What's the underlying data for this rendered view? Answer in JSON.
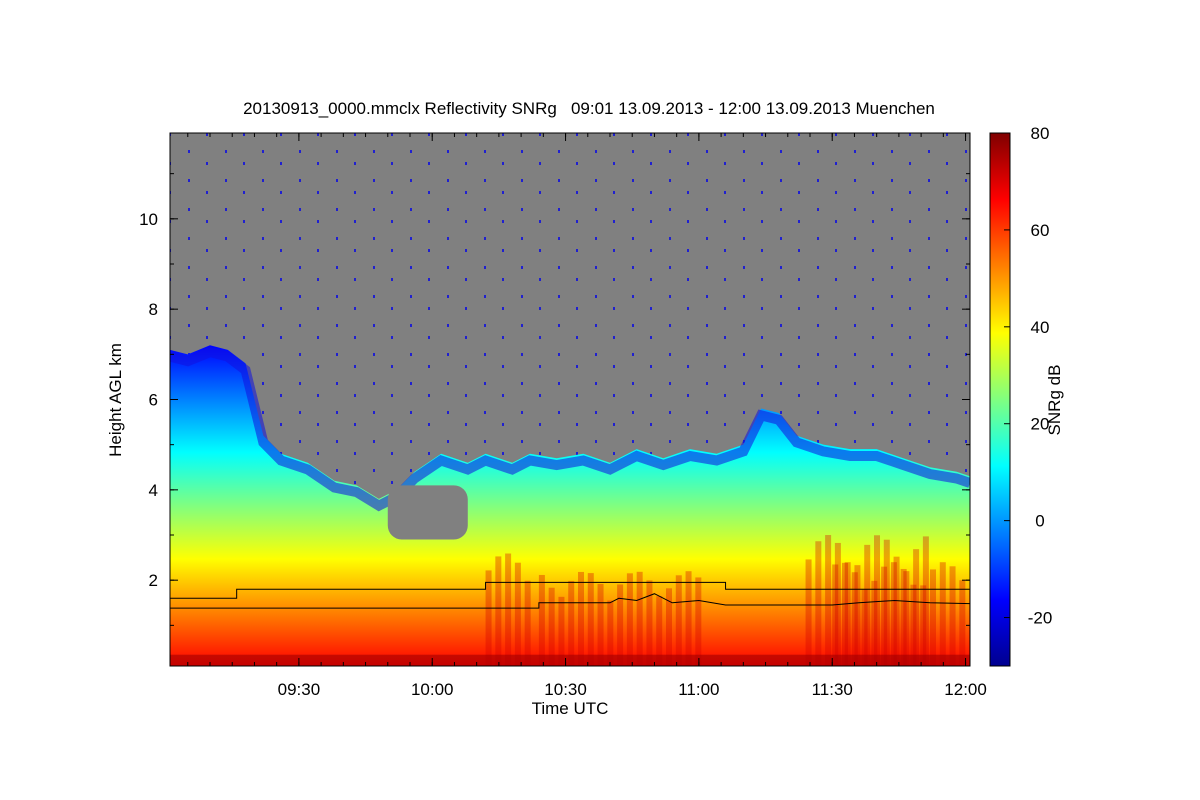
{
  "chart_data": {
    "type": "heatmap",
    "title": "20130913_0000.mmclx Reflectivity SNRg   09:01 13.09.2013 - 12:00 13.09.2013 Muenchen",
    "xlabel": "Time UTC",
    "ylabel": "Height AGL km",
    "colorbar_label": "SNRg dB",
    "x_range_minutes": [
      541,
      721
    ],
    "x_ticks": [
      {
        "minute": 570,
        "label": "09:30"
      },
      {
        "minute": 600,
        "label": "10:00"
      },
      {
        "minute": 630,
        "label": "10:30"
      },
      {
        "minute": 660,
        "label": "11:00"
      },
      {
        "minute": 690,
        "label": "11:30"
      },
      {
        "minute": 720,
        "label": "12:00"
      }
    ],
    "ylim": [
      0.1,
      11.9
    ],
    "y_ticks": [
      {
        "value": 2,
        "label": "2"
      },
      {
        "value": 4,
        "label": "4"
      },
      {
        "value": 6,
        "label": "6"
      },
      {
        "value": 8,
        "label": "8"
      },
      {
        "value": 10,
        "label": "10"
      }
    ],
    "colorbar_range": [
      -30,
      80
    ],
    "colorbar_ticks": [
      {
        "value": -20,
        "label": "-20"
      },
      {
        "value": 0,
        "label": "0"
      },
      {
        "value": 20,
        "label": "20"
      },
      {
        "value": 40,
        "label": "40"
      },
      {
        "value": 60,
        "label": "60"
      },
      {
        "value": 80,
        "label": "80"
      }
    ],
    "colormap": [
      "#00008f",
      "#0000ff",
      "#0080ff",
      "#00ffff",
      "#80ff80",
      "#ffff00",
      "#ff8000",
      "#ff0000",
      "#800000"
    ],
    "no_data_color": "#808080",
    "cloud_top_km": [
      [
        541,
        7.1
      ],
      [
        545,
        7.0
      ],
      [
        550,
        7.2
      ],
      [
        554,
        7.1
      ],
      [
        558,
        6.8
      ],
      [
        562,
        5.2
      ],
      [
        566,
        4.8
      ],
      [
        572,
        4.6
      ],
      [
        578,
        4.2
      ],
      [
        583,
        4.1
      ],
      [
        588,
        3.8
      ],
      [
        592,
        4.0
      ],
      [
        596,
        4.4
      ],
      [
        602,
        4.8
      ],
      [
        608,
        4.6
      ],
      [
        612,
        4.8
      ],
      [
        618,
        4.6
      ],
      [
        622,
        4.8
      ],
      [
        628,
        4.7
      ],
      [
        634,
        4.8
      ],
      [
        640,
        4.6
      ],
      [
        646,
        4.9
      ],
      [
        652,
        4.7
      ],
      [
        658,
        4.9
      ],
      [
        664,
        4.8
      ],
      [
        670,
        5.0
      ],
      [
        674,
        5.8
      ],
      [
        678,
        5.7
      ],
      [
        682,
        5.2
      ],
      [
        688,
        5.0
      ],
      [
        694,
        4.9
      ],
      [
        700,
        4.9
      ],
      [
        706,
        4.7
      ],
      [
        712,
        4.5
      ],
      [
        718,
        4.4
      ],
      [
        721,
        4.3
      ]
    ],
    "gap_region": {
      "minutes": [
        590,
        608
      ],
      "height_km": [
        2.9,
        4.1
      ]
    },
    "series": [
      {
        "name": "upper line",
        "points": [
          [
            541,
            1.6
          ],
          [
            556,
            1.6
          ],
          [
            556,
            1.8
          ],
          [
            612,
            1.8
          ],
          [
            612,
            1.95
          ],
          [
            666,
            1.95
          ],
          [
            666,
            1.8
          ],
          [
            721,
            1.8
          ]
        ]
      },
      {
        "name": "lower line",
        "points": [
          [
            541,
            1.38
          ],
          [
            624,
            1.38
          ],
          [
            624,
            1.5
          ],
          [
            640,
            1.5
          ],
          [
            642,
            1.6
          ],
          [
            646,
            1.55
          ],
          [
            650,
            1.7
          ],
          [
            654,
            1.5
          ],
          [
            660,
            1.55
          ],
          [
            666,
            1.45
          ],
          [
            690,
            1.45
          ],
          [
            696,
            1.5
          ],
          [
            704,
            1.55
          ],
          [
            712,
            1.5
          ],
          [
            721,
            1.48
          ]
        ]
      }
    ]
  }
}
